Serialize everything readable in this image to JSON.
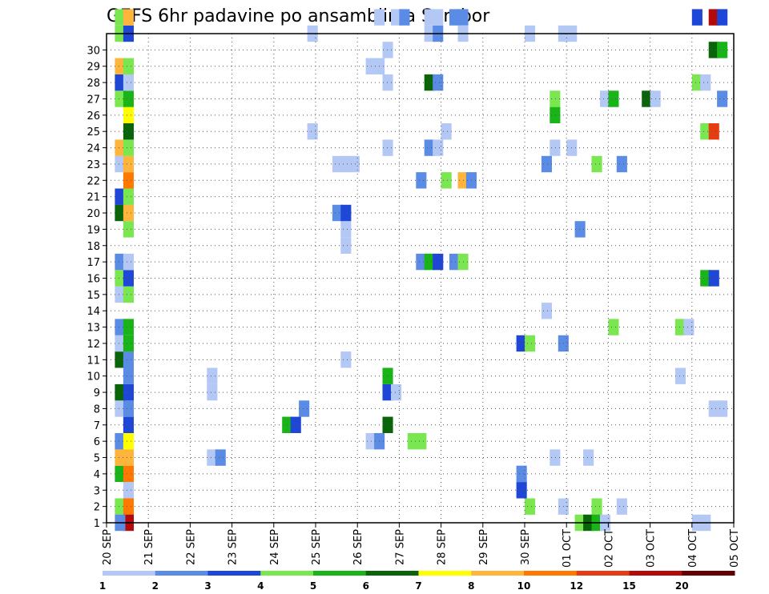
{
  "chart_data": {
    "type": "heatmap",
    "title": "GEFS 6hr padavine po ansamblima Sombor",
    "xlabel": "",
    "ylabel": "",
    "x_ticks": [
      "20 SEP",
      "21 SEP",
      "22 SEP",
      "23 SEP",
      "24 SEP",
      "25 SEP",
      "26 SEP",
      "27 SEP",
      "28 SEP",
      "29 SEP",
      "30 SEP",
      "01 OCT",
      "02 OCT",
      "03 OCT",
      "04 OCT",
      "05 OCT"
    ],
    "y_ticks": [
      "1",
      "2",
      "3",
      "4",
      "5",
      "6",
      "7",
      "8",
      "9",
      "10",
      "11",
      "12",
      "13",
      "14",
      "15",
      "16",
      "17",
      "18",
      "19",
      "20",
      "21",
      "22",
      "23",
      "24",
      "25",
      "26",
      "27",
      "28",
      "29",
      "30"
    ],
    "xlim": [
      0,
      15
    ],
    "ylim": [
      0,
      30
    ],
    "grid": true,
    "colorbar": {
      "labels": [
        "1",
        "2",
        "3",
        "4",
        "5",
        "6",
        "7",
        "8",
        "10",
        "12",
        "15",
        "20"
      ],
      "colors": [
        "#b4c8f5",
        "#5a8ce6",
        "#1e46d7",
        "#7ae650",
        "#18b418",
        "#0a640a",
        "#ffff00",
        "#ffb43c",
        "#ff7800",
        "#e63c14",
        "#b40a0a",
        "#640000"
      ],
      "placement": "bottom"
    },
    "cells": [
      {
        "x": 0.2,
        "y": 0,
        "v": 4
      },
      {
        "x": 0.4,
        "y": 0,
        "v": 10
      },
      {
        "x": 0.4,
        "y": 1,
        "v": 1
      },
      {
        "x": 0.2,
        "y": 2,
        "v": 5
      },
      {
        "x": 0.4,
        "y": 2,
        "v": 10
      },
      {
        "x": 0.2,
        "y": 3,
        "v": 8
      },
      {
        "x": 0.4,
        "y": 3,
        "v": 8
      },
      {
        "x": 0.2,
        "y": 4,
        "v": 2
      },
      {
        "x": 0.4,
        "y": 4,
        "v": 7
      },
      {
        "x": 0.4,
        "y": 5,
        "v": 3
      },
      {
        "x": 0.2,
        "y": 6,
        "v": 1
      },
      {
        "x": 0.4,
        "y": 6,
        "v": 2
      },
      {
        "x": 0.2,
        "y": 7,
        "v": 6
      },
      {
        "x": 0.4,
        "y": 7,
        "v": 3
      },
      {
        "x": 0.4,
        "y": 8,
        "v": 2
      },
      {
        "x": 0.2,
        "y": 9,
        "v": 6
      },
      {
        "x": 0.4,
        "y": 9,
        "v": 2
      },
      {
        "x": 0.2,
        "y": 10,
        "v": 1
      },
      {
        "x": 0.4,
        "y": 10,
        "v": 5
      },
      {
        "x": 0.2,
        "y": 11,
        "v": 2
      },
      {
        "x": 0.4,
        "y": 11,
        "v": 5
      },
      {
        "x": 0.2,
        "y": 13,
        "v": 1
      },
      {
        "x": 0.4,
        "y": 13,
        "v": 4
      },
      {
        "x": 0.2,
        "y": 14,
        "v": 4
      },
      {
        "x": 0.4,
        "y": 14,
        "v": 3
      },
      {
        "x": 0.2,
        "y": 15,
        "v": 2
      },
      {
        "x": 0.4,
        "y": 15,
        "v": 1
      },
      {
        "x": 0.4,
        "y": 17,
        "v": 4
      },
      {
        "x": 0.2,
        "y": 18,
        "v": 6
      },
      {
        "x": 0.4,
        "y": 18,
        "v": 8
      },
      {
        "x": 0.2,
        "y": 19,
        "v": 3
      },
      {
        "x": 0.4,
        "y": 19,
        "v": 4
      },
      {
        "x": 0.4,
        "y": 20,
        "v": 10
      },
      {
        "x": 0.2,
        "y": 21,
        "v": 1
      },
      {
        "x": 0.4,
        "y": 21,
        "v": 8
      },
      {
        "x": 0.2,
        "y": 22,
        "v": 8
      },
      {
        "x": 0.4,
        "y": 22,
        "v": 4
      },
      {
        "x": 0.4,
        "y": 23,
        "v": 6
      },
      {
        "x": 0.4,
        "y": 24,
        "v": 7
      },
      {
        "x": 0.2,
        "y": 25,
        "v": 4
      },
      {
        "x": 0.4,
        "y": 25,
        "v": 5
      },
      {
        "x": 0.2,
        "y": 26,
        "v": 3
      },
      {
        "x": 0.4,
        "y": 26,
        "v": 1
      },
      {
        "x": 0.2,
        "y": 27,
        "v": 8
      },
      {
        "x": 0.4,
        "y": 27,
        "v": 4
      },
      {
        "x": 0.2,
        "y": 29,
        "v": 4
      },
      {
        "x": 0.4,
        "y": 29,
        "v": 3
      },
      {
        "x": 0.2,
        "y": 30,
        "v": 4
      },
      {
        "x": 0.4,
        "y": 30,
        "v": 8
      },
      {
        "x": 0.4,
        "y": -1,
        "v": 15
      },
      {
        "x": 0.2,
        "y": -1,
        "v": 2
      },
      {
        "x": 2.4,
        "y": 3,
        "v": 1
      },
      {
        "x": 2.6,
        "y": 3,
        "v": 2
      },
      {
        "x": 2.4,
        "y": 8,
        "v": 1
      },
      {
        "x": 2.4,
        "y": 7,
        "v": 1
      },
      {
        "x": 4.6,
        "y": 6,
        "v": 2
      },
      {
        "x": 4.2,
        "y": 5,
        "v": 5
      },
      {
        "x": 4.4,
        "y": 5,
        "v": 3
      },
      {
        "x": 4.8,
        "y": 23,
        "v": 1
      },
      {
        "x": 4.8,
        "y": 29,
        "v": 1
      },
      {
        "x": 5.6,
        "y": 9,
        "v": 1
      },
      {
        "x": 5.6,
        "y": 16,
        "v": 1
      },
      {
        "x": 5.6,
        "y": 17,
        "v": 1
      },
      {
        "x": 5.4,
        "y": 18,
        "v": 2
      },
      {
        "x": 5.6,
        "y": 18,
        "v": 3
      },
      {
        "x": 5.4,
        "y": 21,
        "v": 1
      },
      {
        "x": 5.6,
        "y": 21,
        "v": 1
      },
      {
        "x": 5.8,
        "y": 21,
        "v": 1
      },
      {
        "x": 6.2,
        "y": 27,
        "v": 1
      },
      {
        "x": 6.4,
        "y": 27,
        "v": 1
      },
      {
        "x": 6.2,
        "y": 4,
        "v": 1
      },
      {
        "x": 6.4,
        "y": 4,
        "v": 2
      },
      {
        "x": 6.6,
        "y": 5,
        "v": 6
      },
      {
        "x": 6.6,
        "y": 7,
        "v": 3
      },
      {
        "x": 6.8,
        "y": 7,
        "v": 1
      },
      {
        "x": 6.6,
        "y": 8,
        "v": 5
      },
      {
        "x": 6.6,
        "y": 22,
        "v": 1
      },
      {
        "x": 6.6,
        "y": 26,
        "v": 1
      },
      {
        "x": 6.6,
        "y": 28,
        "v": 1
      },
      {
        "x": 6.4,
        "y": 30,
        "v": 1
      },
      {
        "x": 6.8,
        "y": 30,
        "v": 1
      },
      {
        "x": 7.0,
        "y": 30,
        "v": 2
      },
      {
        "x": 7.2,
        "y": 4,
        "v": 4
      },
      {
        "x": 7.4,
        "y": 4,
        "v": 4
      },
      {
        "x": 7.4,
        "y": 15,
        "v": 2
      },
      {
        "x": 7.6,
        "y": 15,
        "v": 5
      },
      {
        "x": 7.8,
        "y": 15,
        "v": 3
      },
      {
        "x": 7.4,
        "y": 20,
        "v": 2
      },
      {
        "x": 7.6,
        "y": 22,
        "v": 2
      },
      {
        "x": 7.8,
        "y": 22,
        "v": 1
      },
      {
        "x": 7.6,
        "y": 26,
        "v": 6
      },
      {
        "x": 7.8,
        "y": 26,
        "v": 2
      },
      {
        "x": 7.6,
        "y": 29,
        "v": 1
      },
      {
        "x": 7.8,
        "y": 29,
        "v": 2
      },
      {
        "x": 7.6,
        "y": 30,
        "v": 1
      },
      {
        "x": 7.8,
        "y": 30,
        "v": 1
      },
      {
        "x": 8.0,
        "y": 23,
        "v": 1
      },
      {
        "x": 8.2,
        "y": 15,
        "v": 2
      },
      {
        "x": 8.4,
        "y": 15,
        "v": 4
      },
      {
        "x": 8.0,
        "y": 20,
        "v": 4
      },
      {
        "x": 8.4,
        "y": 20,
        "v": 8
      },
      {
        "x": 8.6,
        "y": 20,
        "v": 2
      },
      {
        "x": 8.2,
        "y": 30,
        "v": 2
      },
      {
        "x": 8.4,
        "y": 30,
        "v": 2
      },
      {
        "x": 8.4,
        "y": 29,
        "v": 1
      },
      {
        "x": 9.8,
        "y": 1,
        "v": 3
      },
      {
        "x": 9.8,
        "y": 2,
        "v": 2
      },
      {
        "x": 10.0,
        "y": 0,
        "v": 4
      },
      {
        "x": 9.8,
        "y": 10,
        "v": 3
      },
      {
        "x": 10.0,
        "y": 10,
        "v": 4
      },
      {
        "x": 10.0,
        "y": 29,
        "v": 1
      },
      {
        "x": 10.4,
        "y": 12,
        "v": 1
      },
      {
        "x": 10.4,
        "y": 21,
        "v": 2
      },
      {
        "x": 10.6,
        "y": 3,
        "v": 1
      },
      {
        "x": 10.6,
        "y": 22,
        "v": 1
      },
      {
        "x": 10.6,
        "y": 24,
        "v": 5
      },
      {
        "x": 10.6,
        "y": 25,
        "v": 4
      },
      {
        "x": 10.8,
        "y": 0,
        "v": 1
      },
      {
        "x": 10.8,
        "y": 10,
        "v": 2
      },
      {
        "x": 10.8,
        "y": 29,
        "v": 1
      },
      {
        "x": 11.0,
        "y": 29,
        "v": 1
      },
      {
        "x": 11.0,
        "y": 22,
        "v": 1
      },
      {
        "x": 11.2,
        "y": -1,
        "v": 4
      },
      {
        "x": 11.4,
        "y": -1,
        "v": 6
      },
      {
        "x": 11.4,
        "y": 3,
        "v": 1
      },
      {
        "x": 11.2,
        "y": 17,
        "v": 2
      },
      {
        "x": 11.6,
        "y": 0,
        "v": 4
      },
      {
        "x": 11.6,
        "y": -1,
        "v": 5
      },
      {
        "x": 11.6,
        "y": 21,
        "v": 4
      },
      {
        "x": 11.8,
        "y": 25,
        "v": 1
      },
      {
        "x": 11.8,
        "y": -1,
        "v": 1
      },
      {
        "x": 12.0,
        "y": 25,
        "v": 5
      },
      {
        "x": 12.0,
        "y": 11,
        "v": 4
      },
      {
        "x": 12.2,
        "y": 0,
        "v": 1
      },
      {
        "x": 12.2,
        "y": 21,
        "v": 2
      },
      {
        "x": 12.8,
        "y": 25,
        "v": 6
      },
      {
        "x": 13.0,
        "y": 25,
        "v": 1
      },
      {
        "x": 13.6,
        "y": 11,
        "v": 4
      },
      {
        "x": 13.8,
        "y": 11,
        "v": 1
      },
      {
        "x": 13.6,
        "y": 8,
        "v": 1
      },
      {
        "x": 14.0,
        "y": 26,
        "v": 4
      },
      {
        "x": 14.2,
        "y": 26,
        "v": 1
      },
      {
        "x": 14.0,
        "y": -1,
        "v": 1
      },
      {
        "x": 14.2,
        "y": -1,
        "v": 1
      },
      {
        "x": 14.2,
        "y": 23,
        "v": 4
      },
      {
        "x": 14.4,
        "y": 23,
        "v": 12
      },
      {
        "x": 14.2,
        "y": 14,
        "v": 5
      },
      {
        "x": 14.4,
        "y": 14,
        "v": 3
      },
      {
        "x": 14.4,
        "y": 28,
        "v": 6
      },
      {
        "x": 14.6,
        "y": 28,
        "v": 5
      },
      {
        "x": 14.0,
        "y": 30,
        "v": 3
      },
      {
        "x": 14.4,
        "y": 30,
        "v": 15
      },
      {
        "x": 14.6,
        "y": 30,
        "v": 3
      },
      {
        "x": 14.6,
        "y": 25,
        "v": 2
      },
      {
        "x": 14.4,
        "y": 6,
        "v": 1
      },
      {
        "x": 14.6,
        "y": 6,
        "v": 1
      }
    ]
  }
}
